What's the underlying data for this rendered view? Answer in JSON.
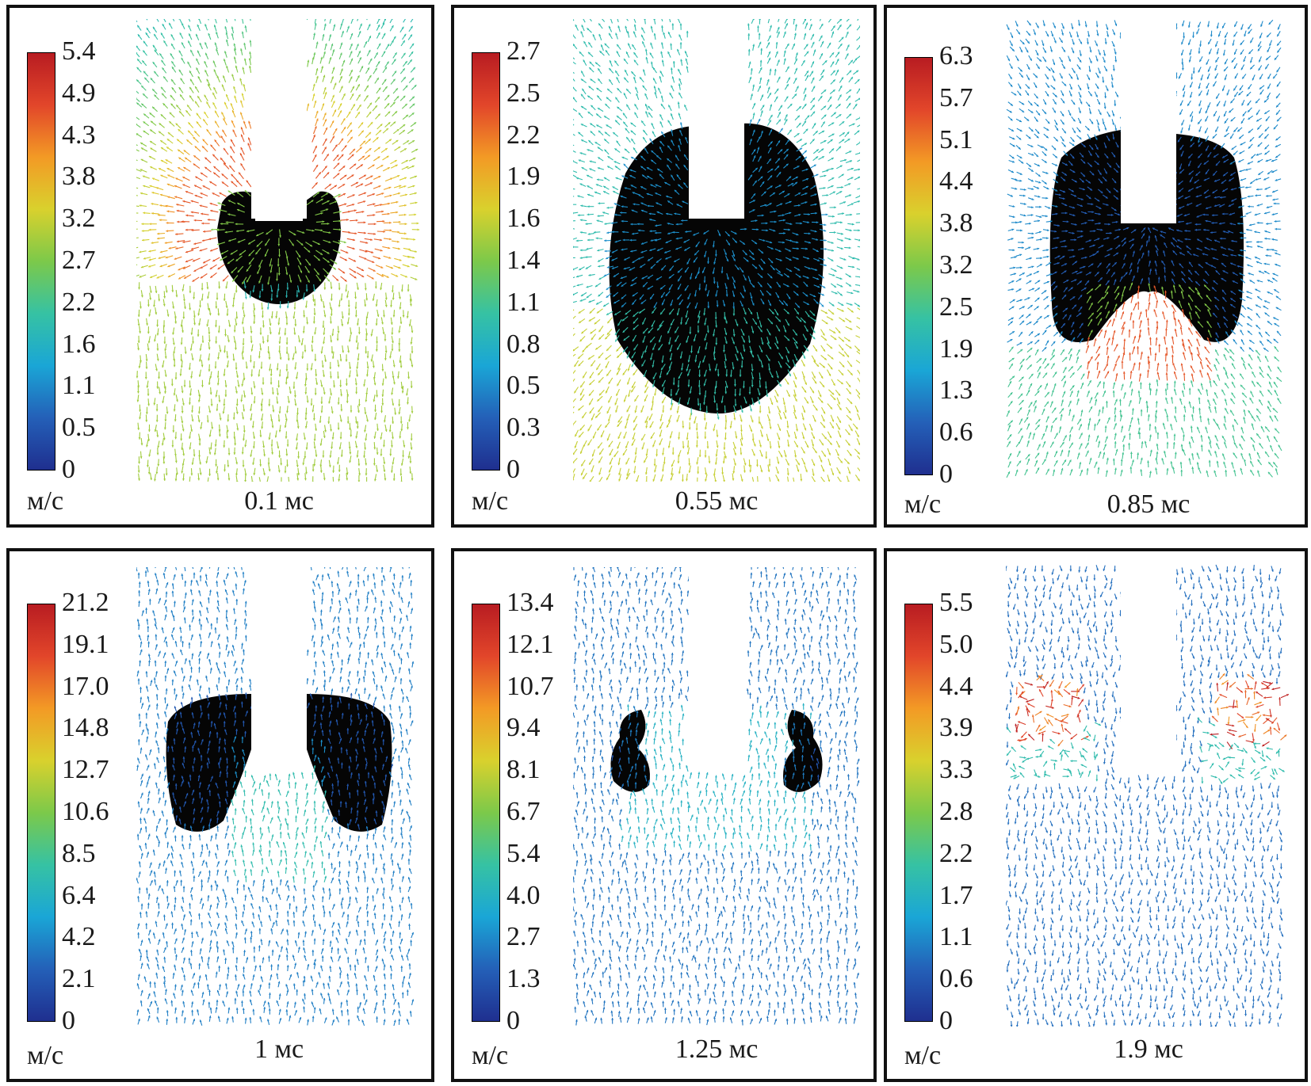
{
  "unit_label": "м/с",
  "colormap": [
    "#1f2f8f",
    "#2460b8",
    "#1aa6d6",
    "#36c2a3",
    "#7cc94a",
    "#d9d12d",
    "#f39a25",
    "#e2462a",
    "#b81c22"
  ],
  "bubble_color": "#050505",
  "panels": [
    {
      "time": "0.1 мс",
      "ticks": [
        "5.4",
        "4.9",
        "4.3",
        "3.8",
        "3.2",
        "2.7",
        "2.2",
        "1.6",
        "1.1",
        "0.5",
        "0"
      ],
      "stage": "hemisphere"
    },
    {
      "time": "0.55 мс",
      "ticks": [
        "2.7",
        "2.5",
        "2.2",
        "1.9",
        "1.6",
        "1.4",
        "1.1",
        "0.8",
        "0.5",
        "0.3",
        "0"
      ],
      "stage": "ellipse"
    },
    {
      "time": "0.85 мс",
      "ticks": [
        "6.3",
        "5.7",
        "5.1",
        "4.4",
        "3.8",
        "3.2",
        "2.5",
        "1.9",
        "1.3",
        "0.6",
        "0"
      ],
      "stage": "collapsing"
    },
    {
      "time": "1 мс",
      "ticks": [
        "21.2",
        "19.1",
        "17.0",
        "14.8",
        "12.7",
        "10.6",
        "8.5",
        "6.4",
        "4.2",
        "2.1",
        "0"
      ],
      "stage": "split"
    },
    {
      "time": "1.25 мс",
      "ticks": [
        "13.4",
        "12.1",
        "10.7",
        "9.4",
        "8.1",
        "6.7",
        "5.4",
        "4.0",
        "2.7",
        "1.3",
        "0"
      ],
      "stage": "small"
    },
    {
      "time": "1.9 мс",
      "ticks": [
        "5.5",
        "5.0",
        "4.4",
        "3.9",
        "3.3",
        "2.8",
        "2.2",
        "1.7",
        "1.1",
        "0.6",
        "0"
      ],
      "stage": "vortex"
    }
  ]
}
